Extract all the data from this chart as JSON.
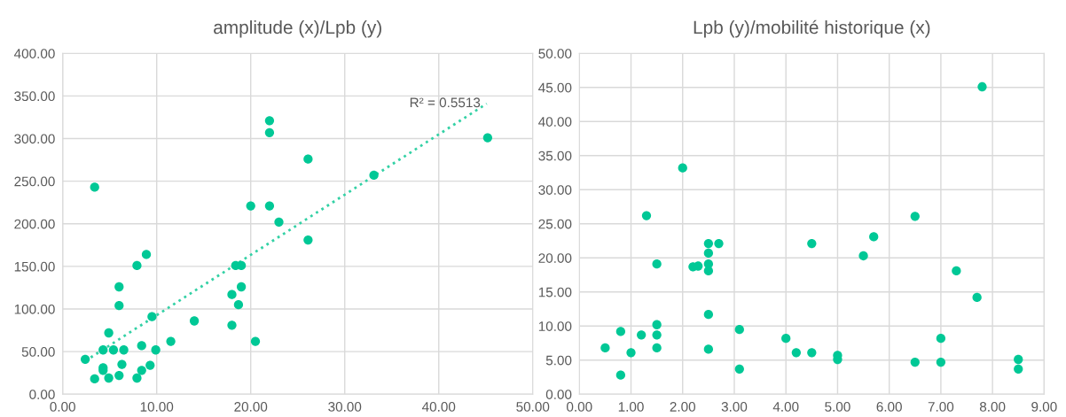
{
  "chart_data": [
    {
      "type": "scatter",
      "title": "amplitude (x)/Lpb (y)",
      "marker": "circle",
      "grid": true,
      "legend": false,
      "xlim": [
        0,
        50
      ],
      "ylim": [
        0,
        400
      ],
      "xticks": [
        {
          "value": 0,
          "label": "0.00"
        },
        {
          "value": 10,
          "label": "10.00"
        },
        {
          "value": 20,
          "label": "20.00"
        },
        {
          "value": 30,
          "label": "30.00"
        },
        {
          "value": 40,
          "label": "40.00"
        },
        {
          "value": 50,
          "label": "50.00"
        }
      ],
      "yticks": [
        {
          "value": 0,
          "label": "0.00"
        },
        {
          "value": 50,
          "label": "50.00"
        },
        {
          "value": 100,
          "label": "100.00"
        },
        {
          "value": 150,
          "label": "150.00"
        },
        {
          "value": 200,
          "label": "200.00"
        },
        {
          "value": 250,
          "label": "250.00"
        },
        {
          "value": 300,
          "label": "300.00"
        },
        {
          "value": 350,
          "label": "350.00"
        },
        {
          "value": 400,
          "label": "400.00"
        }
      ],
      "series": [
        {
          "color": "#00c896",
          "x": [
            2.4,
            3.4,
            3.4,
            4.3,
            4.3,
            4.3,
            4.9,
            4.9,
            5.4,
            6.0,
            6.0,
            6.0,
            6.3,
            6.5,
            7.9,
            7.9,
            8.4,
            8.4,
            8.9,
            9.3,
            9.5,
            9.9,
            11.5,
            14.0,
            18.0,
            18.0,
            18.4,
            19.0,
            18.7,
            19.0,
            20.0,
            20.5,
            22.0,
            22.0,
            22.0,
            26.1,
            23.0,
            26.1,
            33.1,
            45.2
          ],
          "values": [
            41,
            243,
            18,
            52,
            31,
            28,
            72,
            19,
            52,
            126,
            104,
            22,
            35,
            52,
            151,
            19,
            57,
            28,
            164,
            34,
            91,
            52,
            62,
            86,
            81,
            117,
            151,
            151,
            105,
            126,
            221,
            62,
            321,
            307,
            221,
            276,
            202,
            181,
            257,
            301
          ]
        },
        {
          "type": "line",
          "marker": "none",
          "color": "#33d1a5",
          "line_style": "dotted",
          "x": [
            2.4,
            45.1
          ],
          "values": [
            39,
            341
          ]
        }
      ],
      "annotations": [
        {
          "text": "R² = 0.5513",
          "x": 45.1,
          "y": 341
        }
      ]
    },
    {
      "type": "scatter",
      "title": "Lpb (y)/mobilité historique (x)",
      "marker": "circle",
      "grid": true,
      "legend": false,
      "xlim": [
        0,
        9
      ],
      "ylim": [
        0,
        50
      ],
      "xticks": [
        {
          "value": 0,
          "label": "0.00"
        },
        {
          "value": 1,
          "label": "1.00"
        },
        {
          "value": 2,
          "label": "2.00"
        },
        {
          "value": 3,
          "label": "3.00"
        },
        {
          "value": 4,
          "label": "4.00"
        },
        {
          "value": 5,
          "label": "5.00"
        },
        {
          "value": 6,
          "label": "6.00"
        },
        {
          "value": 7,
          "label": "7.00"
        },
        {
          "value": 8,
          "label": "8.00"
        },
        {
          "value": 9,
          "label": "9.00"
        }
      ],
      "yticks": [
        {
          "value": 0,
          "label": "0.00"
        },
        {
          "value": 5,
          "label": "5.00"
        },
        {
          "value": 10,
          "label": "10.00"
        },
        {
          "value": 15,
          "label": "15.00"
        },
        {
          "value": 20,
          "label": "20.00"
        },
        {
          "value": 25,
          "label": "25.00"
        },
        {
          "value": 30,
          "label": "30.00"
        },
        {
          "value": 35,
          "label": "35.00"
        },
        {
          "value": 40,
          "label": "40.00"
        },
        {
          "value": 45,
          "label": "45.00"
        },
        {
          "value": 50,
          "label": "50.00"
        }
      ],
      "series": [
        {
          "color": "#00c896",
          "x": [
            0.5,
            0.8,
            0.8,
            1.0,
            1.2,
            1.3,
            1.5,
            1.5,
            1.5,
            1.5,
            2.0,
            2.2,
            2.3,
            2.5,
            2.5,
            2.5,
            2.5,
            2.5,
            2.5,
            2.7,
            3.1,
            3.1,
            4.0,
            4.2,
            4.5,
            4.5,
            5.0,
            5.0,
            5.5,
            5.7,
            6.5,
            6.5,
            7.0,
            7.0,
            7.3,
            7.7,
            7.8,
            8.5,
            8.5
          ],
          "values": [
            6.8,
            9.2,
            2.8,
            6.1,
            8.7,
            26.2,
            19.1,
            10.2,
            8.7,
            6.8,
            33.2,
            18.7,
            18.8,
            22.1,
            20.7,
            19.1,
            18.1,
            11.7,
            6.6,
            22.1,
            9.5,
            3.7,
            8.2,
            6.1,
            6.1,
            22.1,
            5.7,
            5.1,
            20.3,
            23.1,
            26.1,
            4.7,
            8.2,
            4.7,
            18.1,
            14.2,
            45.1,
            5.1,
            3.7
          ]
        }
      ]
    }
  ]
}
